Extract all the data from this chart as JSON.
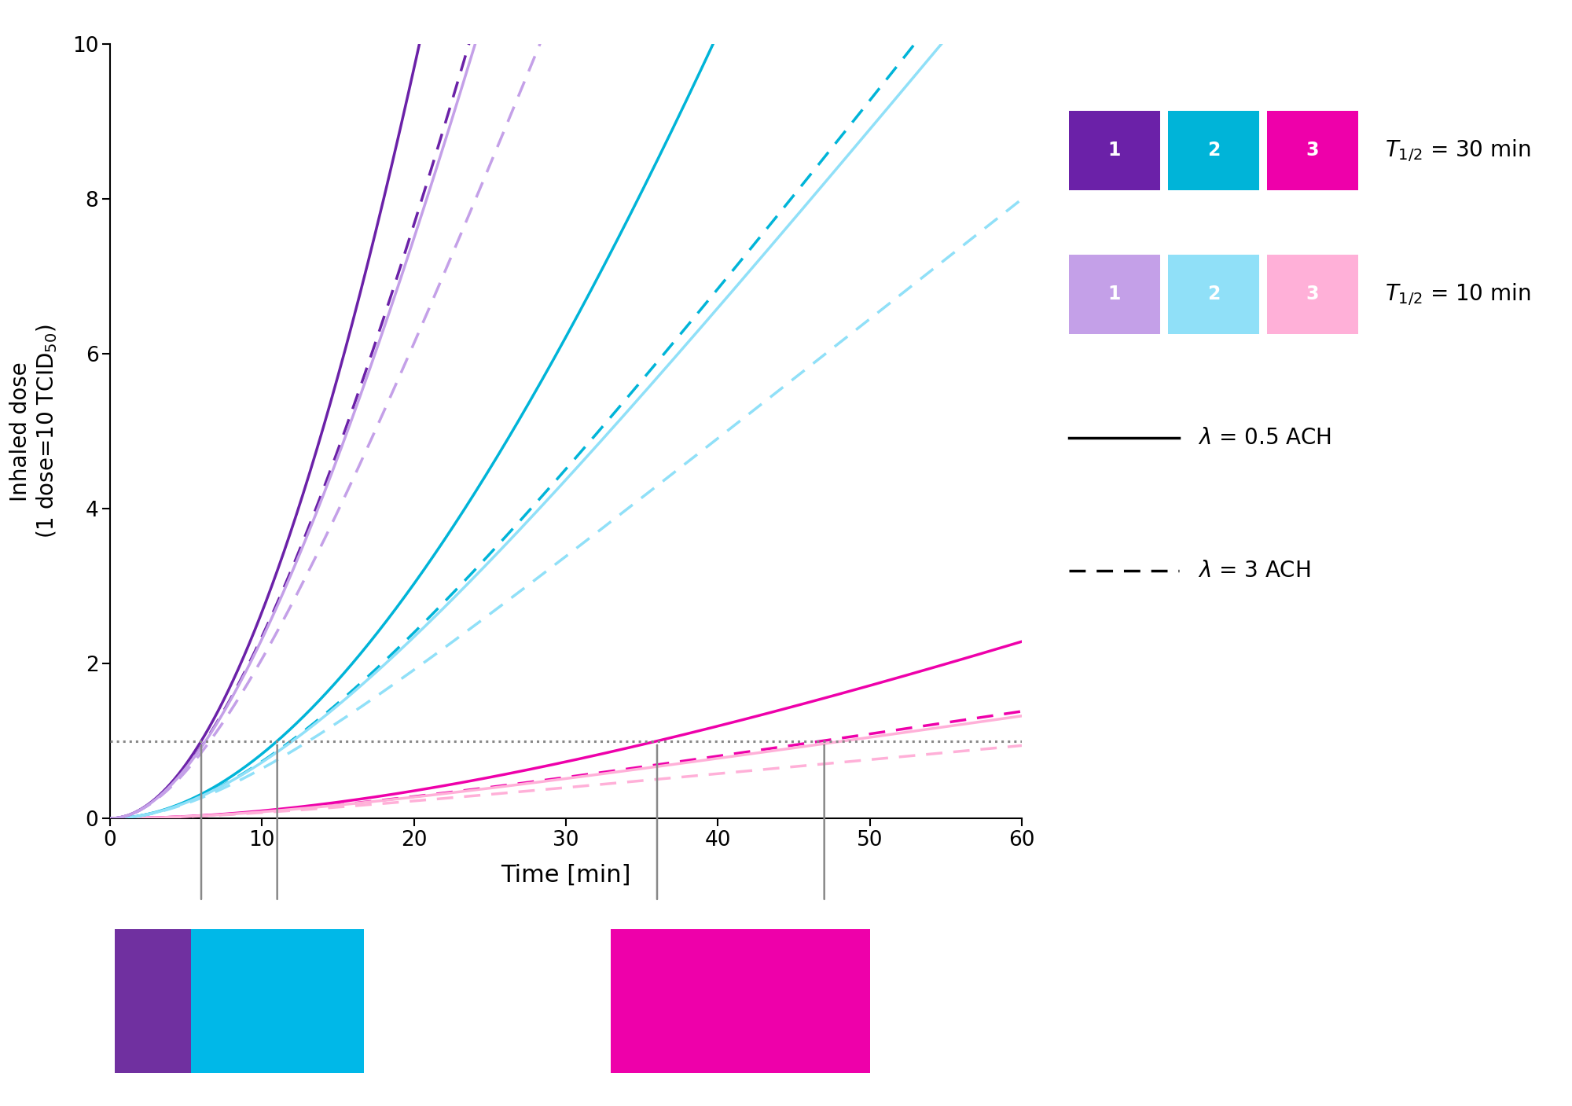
{
  "xlim": [
    0,
    60
  ],
  "ylim": [
    0,
    10
  ],
  "xlabel": "Time [min]",
  "ylabel": "Inhaled dose\n(1 dose=10 TCID$_{50}$)",
  "dotted_line_y": 1.0,
  "dotted_line_color": "#888888",
  "colors_dark": [
    "#6B21A8",
    "#00B4D8",
    "#EE00AA"
  ],
  "colors_light": [
    "#C4A0E8",
    "#90E0F8",
    "#FFB0D8"
  ],
  "box_colors_bottom": [
    "#7030A0",
    "#00B8E8",
    "#EE00AA"
  ],
  "legend_dark": [
    "#6B21A8",
    "#00B4D8",
    "#EE00AA"
  ],
  "legend_light": [
    "#C4A0E8",
    "#90E0F8",
    "#FFB0D8"
  ],
  "background_color": "#FFFFFF",
  "ind1_time": 6,
  "ind2_time": 11,
  "ind3_time_low": 36,
  "ind3_time_high": 47,
  "linewidth": 2.5
}
